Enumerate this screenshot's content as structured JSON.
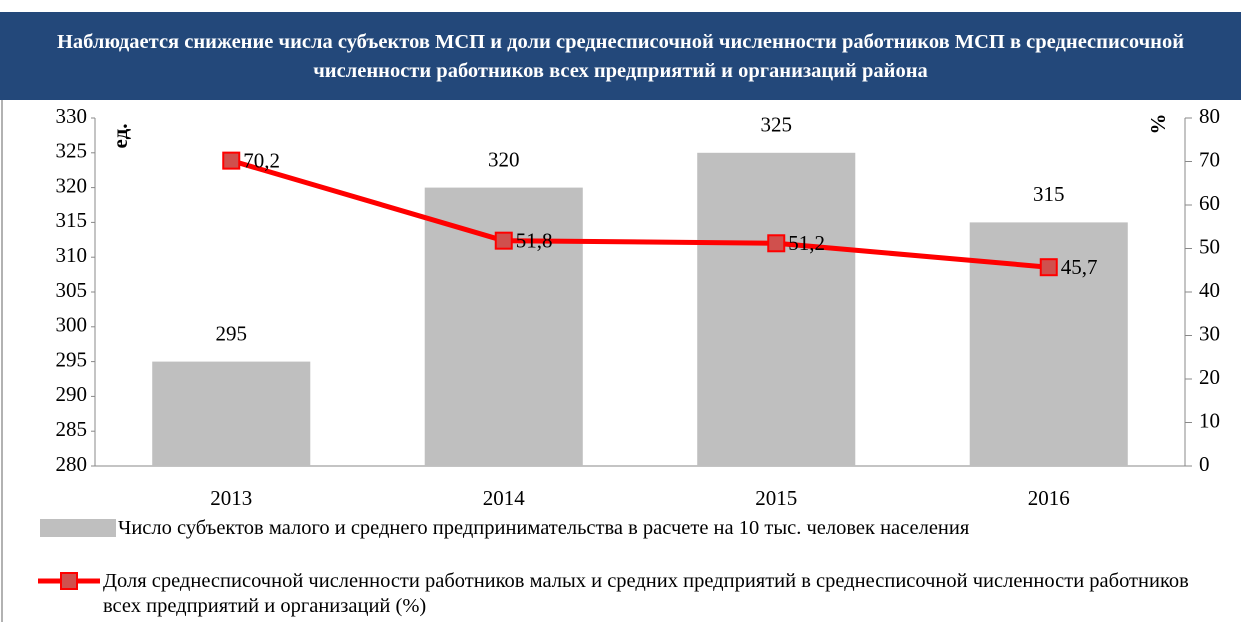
{
  "chart_data": {
    "type": "combo",
    "title": "Наблюдается снижение числа субъектов МСП и доли среднесписочной численности  работников МСП  в  среднесписочной  численности  работников всех  предприятий  и организаций района",
    "categories": [
      "2013",
      "2014",
      "2015",
      "2016"
    ],
    "ylabel": "ед.",
    "y2label": "%",
    "ylim": [
      280,
      330
    ],
    "yticks": [
      280,
      285,
      290,
      295,
      300,
      305,
      310,
      315,
      320,
      325,
      330
    ],
    "y2lim": [
      0,
      80
    ],
    "y2ticks": [
      0,
      10,
      20,
      30,
      40,
      50,
      60,
      70,
      80
    ],
    "series": [
      {
        "name": "Число субъектов малого и среднего предпринимательства в расчете на 10 тыс. человек населения",
        "type": "bar",
        "color": "#bfbfbf",
        "values": [
          295,
          320,
          325,
          315
        ]
      },
      {
        "name": "Доля  среднесписочной численности работников малых и средних предприятий в среднесписочной численности работников всех предприятий и организаций (%)",
        "type": "line",
        "axis": "y2",
        "color": "#ff0000",
        "marker_color": "#d0504d",
        "values": [
          70.2,
          51.8,
          51.2,
          45.7
        ],
        "value_labels": [
          "70,2",
          "51,8",
          "51,2",
          "45,7"
        ]
      }
    ]
  }
}
